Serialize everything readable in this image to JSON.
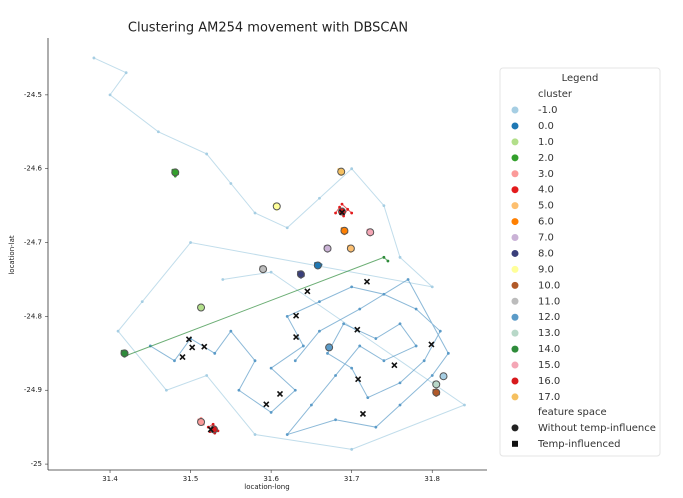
{
  "chart_data": {
    "type": "scatter",
    "title": "Clustering AM254 movement with DBSCAN",
    "x_label": "location-long",
    "y_label": "location-lat",
    "xlim": [
      31.323,
      31.868
    ],
    "ylim": [
      -25.008,
      -24.423
    ],
    "xticks": [
      31.4,
      31.5,
      31.6,
      31.7,
      31.8
    ],
    "yticks": [
      -24.5,
      -24.6,
      -24.7,
      -24.8,
      -24.9,
      -25.0
    ],
    "legend": {
      "title": "Legend",
      "cluster_title": "cluster",
      "feature_title": "feature space",
      "position": "right"
    },
    "series": [
      {
        "name": "-1.0",
        "color": "#a6cee3",
        "x": [
          31.38,
          31.42,
          31.4,
          31.46,
          31.52,
          31.55,
          31.58,
          31.62,
          31.66,
          31.7,
          31.74,
          31.76,
          31.8,
          31.5,
          31.44,
          31.41,
          31.47,
          31.52,
          31.58,
          31.7,
          31.84,
          31.6,
          31.54
        ],
        "values": [
          -24.45,
          -24.47,
          -24.5,
          -24.55,
          -24.58,
          -24.62,
          -24.66,
          -24.68,
          -24.64,
          -24.6,
          -24.65,
          -24.72,
          -24.76,
          -24.7,
          -24.78,
          -24.82,
          -24.9,
          -24.88,
          -24.96,
          -24.98,
          -24.92,
          -24.74,
          -24.75
        ]
      },
      {
        "name": "0.0",
        "color": "#1f78b4",
        "x": [
          31.655,
          31.66,
          31.662
        ],
        "values": [
          -24.728,
          -24.733,
          -24.73
        ]
      },
      {
        "name": "1.0",
        "color": "#b2df8a",
        "x": [
          31.51,
          31.515,
          31.512
        ],
        "values": [
          -24.786,
          -24.79,
          -24.785
        ]
      },
      {
        "name": "2.0",
        "color": "#33a02c",
        "x": [
          31.478,
          31.484,
          31.481
        ],
        "values": [
          -24.602,
          -24.607,
          -24.61
        ]
      },
      {
        "name": "3.0",
        "color": "#fb9a99",
        "x": [
          31.51,
          31.516,
          31.513
        ],
        "values": [
          -24.94,
          -24.946,
          -24.938
        ]
      },
      {
        "name": "4.0",
        "color": "#e31a1c",
        "x": [
          31.68,
          31.685,
          31.69,
          31.695,
          31.688,
          31.7
        ],
        "values": [
          -24.66,
          -24.652,
          -24.664,
          -24.655,
          -24.648,
          -24.66
        ]
      },
      {
        "name": "5.0",
        "color": "#fdbf6f",
        "x": [
          31.696,
          31.702,
          31.699
        ],
        "values": [
          -24.705,
          -24.71,
          -24.712
        ]
      },
      {
        "name": "6.0",
        "color": "#ff7f00",
        "x": [
          31.688,
          31.694,
          31.691
        ],
        "values": [
          -24.681,
          -24.686,
          -24.688
        ]
      },
      {
        "name": "7.0",
        "color": "#cab2d6",
        "x": [
          31.667,
          31.673,
          31.67
        ],
        "values": [
          -24.705,
          -24.71,
          -24.712
        ]
      },
      {
        "name": "8.0",
        "color": "#3a3f7a",
        "x": [
          31.634,
          31.64,
          31.637
        ],
        "values": [
          -24.74,
          -24.745,
          -24.747
        ]
      },
      {
        "name": "9.0",
        "color": "#ffff99",
        "x": [
          31.604,
          31.61,
          31.607
        ],
        "values": [
          -24.648,
          -24.653,
          -24.655
        ]
      },
      {
        "name": "10.0",
        "color": "#b15928",
        "x": [
          31.802,
          31.808,
          31.805
        ],
        "values": [
          -24.9,
          -24.905,
          -24.907
        ]
      },
      {
        "name": "11.0",
        "color": "#bcbcbc",
        "x": [
          31.587,
          31.593,
          31.59
        ],
        "values": [
          -24.733,
          -24.738,
          -24.74
        ]
      },
      {
        "name": "12.0",
        "color": "#5b9bc8",
        "x": [
          31.45,
          31.48,
          31.5,
          31.53,
          31.55,
          31.58,
          31.56,
          31.6,
          31.63,
          31.6,
          31.64,
          31.62,
          31.66,
          31.7,
          31.74,
          31.78,
          31.81,
          31.79,
          31.76,
          31.72,
          31.7,
          31.67,
          31.69,
          31.73,
          31.76,
          31.78,
          31.74,
          31.71,
          31.68,
          31.65,
          31.62,
          31.68,
          31.73,
          31.76,
          31.8,
          31.82,
          31.77,
          31.71,
          31.66,
          31.63
        ],
        "values": [
          -24.84,
          -24.86,
          -24.83,
          -24.85,
          -24.82,
          -24.86,
          -24.9,
          -24.93,
          -24.9,
          -24.87,
          -24.84,
          -24.8,
          -24.78,
          -24.76,
          -24.77,
          -24.79,
          -24.82,
          -24.86,
          -24.89,
          -24.91,
          -24.87,
          -24.85,
          -24.81,
          -24.83,
          -24.81,
          -24.84,
          -24.86,
          -24.84,
          -24.88,
          -24.92,
          -24.96,
          -24.94,
          -24.95,
          -24.92,
          -24.88,
          -24.85,
          -24.75,
          -24.79,
          -24.82,
          -24.86
        ]
      },
      {
        "name": "13.0",
        "color": "#b8d8c8",
        "x": [
          31.802,
          31.808,
          31.805
        ],
        "values": [
          -24.889,
          -24.894,
          -24.896
        ]
      },
      {
        "name": "14.0",
        "color": "#2e8b3a",
        "x": [
          31.415,
          31.421,
          31.418,
          31.74,
          31.745
        ],
        "values": [
          -24.847,
          -24.852,
          -24.854,
          -24.72,
          -24.725
        ]
      },
      {
        "name": "15.0",
        "color": "#f4a6b5",
        "x": [
          31.72,
          31.726,
          31.723
        ],
        "values": [
          -24.683,
          -24.688,
          -24.69
        ]
      },
      {
        "name": "16.0",
        "color": "#d7191c",
        "x": [
          31.522,
          31.528,
          31.534,
          31.53,
          31.524
        ],
        "values": [
          -24.95,
          -24.946,
          -24.955,
          -24.958,
          -24.956
        ]
      },
      {
        "name": "17.0",
        "color": "#f5c060",
        "x": [
          31.684,
          31.69,
          31.687
        ],
        "values": [
          -24.601,
          -24.606,
          -24.608
        ]
      }
    ],
    "feature_space": [
      {
        "name": "Without temp-influence",
        "marker": "circle",
        "x": [
          31.814,
          31.658,
          31.513,
          31.481,
          31.513,
          31.688,
          31.699,
          31.691,
          31.67,
          31.637,
          31.607,
          31.805,
          31.59,
          31.672,
          31.805,
          31.418,
          31.723,
          31.529,
          31.687
        ],
        "values": [
          -24.881,
          -24.731,
          -24.788,
          -24.605,
          -24.943,
          -24.658,
          -24.708,
          -24.684,
          -24.708,
          -24.743,
          -24.651,
          -24.903,
          -24.736,
          -24.842,
          -24.892,
          -24.85,
          -24.686,
          -24.953,
          -24.604
        ],
        "colors": [
          "#a6cee3",
          "#1f78b4",
          "#b2df8a",
          "#33a02c",
          "#fb9a99",
          "#e31a1c",
          "#fdbf6f",
          "#ff7f00",
          "#cab2d6",
          "#3a3f7a",
          "#ffff99",
          "#b15928",
          "#bcbcbc",
          "#5b9bc8",
          "#b8d8c8",
          "#2e8b3a",
          "#f4a6b5",
          "#d7191c",
          "#f5c060"
        ]
      },
      {
        "name": "Temp-influenced",
        "marker": "x",
        "color": "#111111",
        "x": [
          31.49,
          31.498,
          31.517,
          31.502,
          31.631,
          31.631,
          31.645,
          31.707,
          31.719,
          31.753,
          31.799,
          31.708,
          31.611,
          31.594,
          31.714,
          31.688,
          31.525
        ],
        "values": [
          -24.855,
          -24.831,
          -24.841,
          -24.842,
          -24.799,
          -24.828,
          -24.766,
          -24.818,
          -24.753,
          -24.866,
          -24.838,
          -24.885,
          -24.905,
          -24.919,
          -24.932,
          -24.659,
          -24.953
        ]
      }
    ]
  }
}
